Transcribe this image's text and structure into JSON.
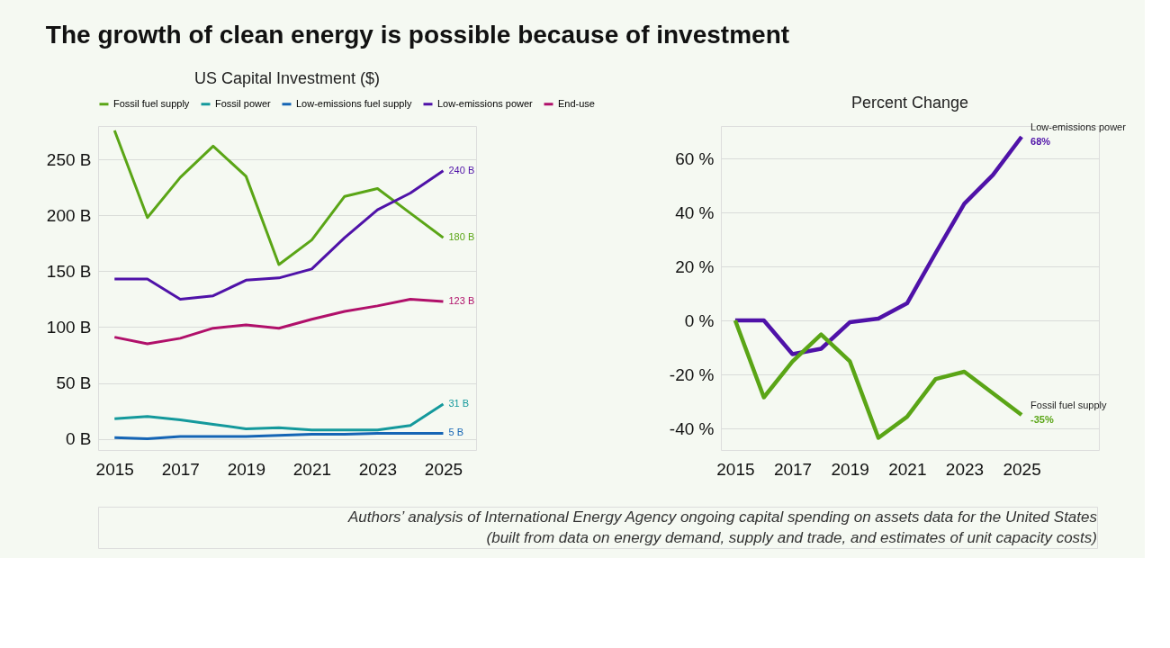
{
  "chart_data": [
    {
      "type": "line",
      "title": "The growth of clean energy is possible because of investment",
      "subtitle": "US Capital Investment ($)",
      "x": [
        2015,
        2016,
        2017,
        2018,
        2019,
        2020,
        2021,
        2022,
        2023,
        2024,
        2025
      ],
      "xlim": [
        2014.5,
        2026
      ],
      "xticks": [
        2015,
        2017,
        2019,
        2021,
        2023,
        2025
      ],
      "ylim": [
        -10,
        280
      ],
      "yticks": [
        {
          "value": 0,
          "label": "0 B"
        },
        {
          "value": 50,
          "label": "50 B"
        },
        {
          "value": 100,
          "label": "100 B"
        },
        {
          "value": 150,
          "label": "150 B"
        },
        {
          "value": 200,
          "label": "200 B"
        },
        {
          "value": 250,
          "label": "250 B"
        }
      ],
      "grid": "y",
      "legend": "top",
      "series": [
        {
          "name": "Fossil fuel supply",
          "color": "#5aa516",
          "values": [
            276,
            198,
            234,
            262,
            235,
            156,
            178,
            217,
            224,
            202,
            180
          ],
          "value_labels": [
            null,
            null,
            null,
            null,
            null,
            null,
            null,
            null,
            null,
            null,
            "180 B"
          ]
        },
        {
          "name": "Fossil power",
          "color": "#14999c",
          "values": [
            18,
            20,
            17,
            13,
            9,
            10,
            8,
            8,
            8,
            12,
            31
          ],
          "value_labels": [
            null,
            null,
            null,
            null,
            null,
            null,
            null,
            null,
            null,
            null,
            "31 B"
          ]
        },
        {
          "name": "Low-emissions fuel supply",
          "color": "#1565b5",
          "values": [
            1,
            0,
            2,
            2,
            2,
            3,
            4,
            4,
            5,
            5,
            5
          ],
          "value_labels": [
            null,
            null,
            null,
            null,
            null,
            null,
            null,
            null,
            null,
            null,
            "5 B"
          ]
        },
        {
          "name": "Low-emissions power",
          "color": "#4f12a8",
          "values": [
            143,
            143,
            125,
            128,
            142,
            144,
            152,
            180,
            205,
            220,
            240
          ],
          "value_labels": [
            null,
            null,
            null,
            null,
            null,
            null,
            null,
            null,
            null,
            null,
            "240 B"
          ]
        },
        {
          "name": "End-use",
          "color": "#b0106a",
          "values": [
            91,
            85,
            90,
            99,
            102,
            99,
            107,
            114,
            119,
            125,
            123
          ],
          "value_labels": [
            null,
            null,
            null,
            null,
            null,
            null,
            null,
            null,
            null,
            null,
            "123 B"
          ]
        }
      ]
    },
    {
      "type": "line",
      "subtitle": "Percent Change",
      "x": [
        2015,
        2016,
        2017,
        2018,
        2019,
        2020,
        2021,
        2022,
        2023,
        2024,
        2025
      ],
      "xlim": [
        2014.5,
        2027.7
      ],
      "xticks": [
        2015,
        2017,
        2019,
        2021,
        2023,
        2025
      ],
      "ylim": [
        -48,
        72
      ],
      "yticks": [
        {
          "value": -40,
          "label": "-40 %"
        },
        {
          "value": -20,
          "label": "-20 %"
        },
        {
          "value": 0,
          "label": "0 %"
        },
        {
          "value": 20,
          "label": "20 %"
        },
        {
          "value": 40,
          "label": "40 %"
        },
        {
          "value": 60,
          "label": "60 %"
        }
      ],
      "grid": "y",
      "annotations": [
        "Authors’ analysis of International Energy Agency ongoing capital spending on assets data for the United States",
        "(built from data on energy demand, supply and trade, and estimates of unit capacity costs)"
      ],
      "series": [
        {
          "name": "Low-emissions power",
          "color": "#4f12a8",
          "values": [
            0,
            0,
            -12.5,
            -10.5,
            -0.7,
            0.7,
            6.3,
            25,
            43.2,
            53.9,
            68
          ],
          "value_labels": [
            null,
            null,
            null,
            null,
            null,
            null,
            null,
            null,
            null,
            null,
            "68%"
          ]
        },
        {
          "name": "Fossil fuel supply",
          "color": "#5aa516",
          "values": [
            0,
            -28.5,
            -15.2,
            -5.2,
            -15.1,
            -43.5,
            -35.7,
            -21.7,
            -19,
            -27,
            -35
          ],
          "value_labels": [
            null,
            null,
            null,
            null,
            null,
            null,
            null,
            null,
            null,
            null,
            "-35%"
          ]
        }
      ]
    }
  ]
}
